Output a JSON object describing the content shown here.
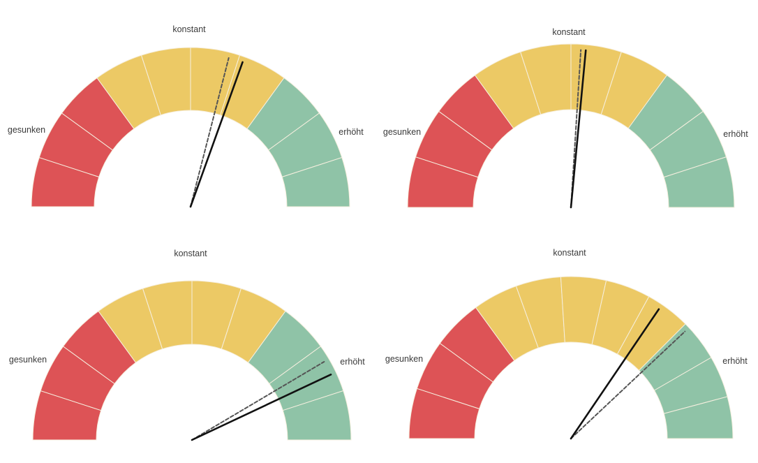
{
  "colors": {
    "low": "#dd5356",
    "mid": "#ecc965",
    "high": "#8fc3a7",
    "divider": "#f6efdf",
    "needle": "#111111",
    "needle_dashed": "#555555"
  },
  "chart_data": [
    {
      "type": "gauge",
      "scale": [
        0,
        100
      ],
      "labels": {
        "low": "gesunken",
        "mid": "konstant",
        "high": "erhöht"
      },
      "bands": [
        {
          "name": "gesunken",
          "from": 0,
          "to": 30,
          "color_key": "low"
        },
        {
          "name": "konstant",
          "from": 30,
          "to": 70,
          "color_key": "mid"
        },
        {
          "name": "erhöht",
          "from": 70,
          "to": 100,
          "color_key": "high"
        }
      ],
      "segments_per_band": [
        3,
        4,
        3
      ],
      "needles": [
        {
          "style": "solid",
          "value": 61
        },
        {
          "style": "dashed",
          "value": 58
        }
      ]
    },
    {
      "type": "gauge",
      "scale": [
        0,
        100
      ],
      "labels": {
        "low": "gesunken",
        "mid": "konstant",
        "high": "erhöht"
      },
      "bands": [
        {
          "name": "gesunken",
          "from": 0,
          "to": 30,
          "color_key": "low"
        },
        {
          "name": "konstant",
          "from": 30,
          "to": 70,
          "color_key": "mid"
        },
        {
          "name": "erhöht",
          "from": 70,
          "to": 100,
          "color_key": "high"
        }
      ],
      "segments_per_band": [
        3,
        4,
        3
      ],
      "needles": [
        {
          "style": "solid",
          "value": 53
        },
        {
          "style": "dashed",
          "value": 52
        }
      ]
    },
    {
      "type": "gauge",
      "scale": [
        0,
        100
      ],
      "labels": {
        "low": "gesunken",
        "mid": "konstant",
        "high": "erhöht"
      },
      "bands": [
        {
          "name": "gesunken",
          "from": 0,
          "to": 30,
          "color_key": "low"
        },
        {
          "name": "konstant",
          "from": 30,
          "to": 70,
          "color_key": "mid"
        },
        {
          "name": "erhöht",
          "from": 70,
          "to": 100,
          "color_key": "high"
        }
      ],
      "segments_per_band": [
        3,
        4,
        3
      ],
      "needles": [
        {
          "style": "solid",
          "value": 86
        },
        {
          "style": "dashed",
          "value": 83
        }
      ]
    },
    {
      "type": "gauge",
      "scale": [
        0,
        100
      ],
      "labels": {
        "low": "gesunken",
        "mid": "konstant",
        "high": "erhöht"
      },
      "bands": [
        {
          "name": "gesunken",
          "from": 0,
          "to": 30,
          "color_key": "low"
        },
        {
          "name": "konstant",
          "from": 30,
          "to": 75,
          "color_key": "mid"
        },
        {
          "name": "erhöht",
          "from": 75,
          "to": 100,
          "color_key": "high"
        }
      ],
      "segments_per_band": [
        3,
        5,
        3
      ],
      "needles": [
        {
          "style": "solid",
          "value": 69
        },
        {
          "style": "dashed",
          "value": 76
        }
      ]
    }
  ]
}
